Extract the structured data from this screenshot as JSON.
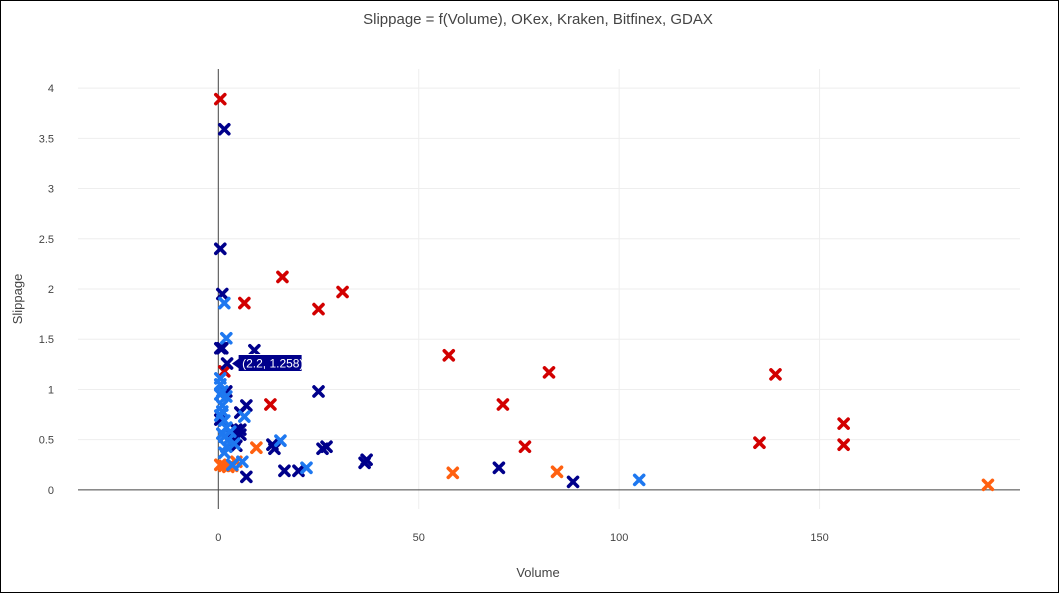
{
  "chart_data": {
    "type": "scatter",
    "title": "Slippage = f(Volume), OKex, Kraken, Bitfinex, GDAX",
    "xlabel": "Volume",
    "ylabel": "Slippage",
    "xlim": [
      -35,
      200
    ],
    "ylim": [
      -0.19,
      4.19
    ],
    "x_ticks": [
      0,
      50,
      100,
      150
    ],
    "y_ticks": [
      0,
      0.5,
      1,
      1.5,
      2,
      2.5,
      3,
      3.5,
      4
    ],
    "grid": true,
    "legend": "none",
    "tooltip": {
      "label": "(2.2, 1.258)",
      "x": 2.2,
      "y": 1.258
    },
    "series": [
      {
        "color": "#d20000",
        "points": [
          [
            0.5,
            3.89
          ],
          [
            16,
            2.12
          ],
          [
            31,
            1.97
          ],
          [
            6.5,
            1.86
          ],
          [
            25,
            1.8
          ],
          [
            57.5,
            1.34
          ],
          [
            1.5,
            1.18
          ],
          [
            82.5,
            1.17
          ],
          [
            139,
            1.15
          ],
          [
            13,
            0.85
          ],
          [
            71,
            0.85
          ],
          [
            156,
            0.66
          ],
          [
            135,
            0.47
          ],
          [
            156,
            0.45
          ],
          [
            76.5,
            0.43
          ]
        ]
      },
      {
        "color": "#ff6010",
        "points": [
          [
            9.5,
            0.42
          ],
          [
            58.5,
            0.17
          ],
          [
            84.5,
            0.18
          ],
          [
            192,
            0.05
          ],
          [
            0.5,
            0.25
          ],
          [
            1.5,
            0.24
          ],
          [
            2.5,
            0.23
          ],
          [
            3.5,
            0.24
          ],
          [
            4.5,
            0.28
          ]
        ]
      },
      {
        "color": "#00008b",
        "points": [
          [
            1.5,
            3.59
          ],
          [
            0.5,
            2.4
          ],
          [
            1,
            1.95
          ],
          [
            0.5,
            1.41
          ],
          [
            1,
            1.41
          ],
          [
            9,
            1.39
          ],
          [
            2.2,
            1.258
          ],
          [
            25,
            0.98
          ],
          [
            2,
            0.98
          ],
          [
            7,
            0.84
          ],
          [
            5.5,
            0.77
          ],
          [
            0.5,
            0.7
          ],
          [
            4.5,
            0.6
          ],
          [
            5.5,
            0.6
          ],
          [
            3,
            0.56
          ],
          [
            5.5,
            0.55
          ],
          [
            4,
            0.5
          ],
          [
            13.5,
            0.45
          ],
          [
            14,
            0.41
          ],
          [
            27,
            0.43
          ],
          [
            26,
            0.41
          ],
          [
            4.5,
            0.44
          ],
          [
            37,
            0.3
          ],
          [
            36.5,
            0.27
          ],
          [
            70,
            0.22
          ],
          [
            16.5,
            0.19
          ],
          [
            20,
            0.19
          ],
          [
            7,
            0.13
          ],
          [
            88.5,
            0.08
          ]
        ]
      },
      {
        "color": "#1e78f0",
        "points": [
          [
            1.5,
            1.86
          ],
          [
            2,
            1.51
          ],
          [
            0.5,
            1.11
          ],
          [
            0.5,
            1.05
          ],
          [
            1,
            0.98
          ],
          [
            0.5,
            0.95
          ],
          [
            2,
            0.93
          ],
          [
            1,
            0.84
          ],
          [
            1,
            0.78
          ],
          [
            0.5,
            0.74
          ],
          [
            6.5,
            0.73
          ],
          [
            1.5,
            0.69
          ],
          [
            2,
            0.62
          ],
          [
            3,
            0.58
          ],
          [
            1,
            0.56
          ],
          [
            1.5,
            0.53
          ],
          [
            2.5,
            0.5
          ],
          [
            15.5,
            0.49
          ],
          [
            4,
            0.46
          ],
          [
            2,
            0.43
          ],
          [
            1.5,
            0.37
          ],
          [
            6,
            0.28
          ],
          [
            3.5,
            0.25
          ],
          [
            22,
            0.22
          ],
          [
            105,
            0.1
          ]
        ]
      }
    ]
  }
}
